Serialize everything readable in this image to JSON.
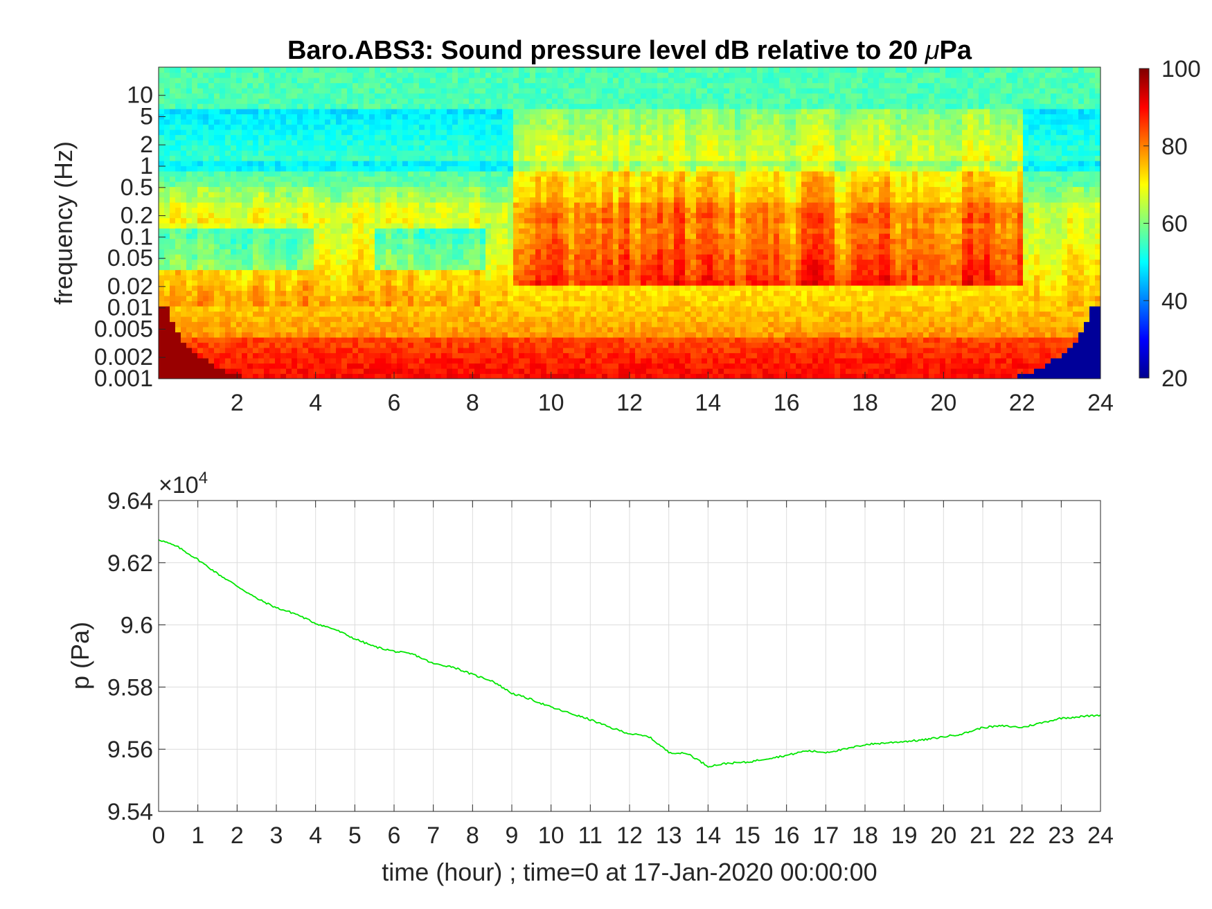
{
  "colors": {
    "line": "#00e600",
    "grid": "#dcdcdc",
    "axis": "#262626"
  },
  "chart_data": [
    {
      "type": "heatmap",
      "title": "Baro.ABS3: Sound pressure level dB relative to 20 ",
      "title_mu": "μ",
      "title_tail": "Pa",
      "ylabel": "frequency (Hz)",
      "xlabel": "",
      "xlim": [
        0,
        24
      ],
      "ylim": [
        0.001,
        25
      ],
      "yscale": "log",
      "x_ticks": [
        "2",
        "4",
        "6",
        "8",
        "10",
        "12",
        "14",
        "16",
        "18",
        "20",
        "22",
        "24"
      ],
      "x_tick_values": [
        2,
        4,
        6,
        8,
        10,
        12,
        14,
        16,
        18,
        20,
        22,
        24
      ],
      "y_ticks": [
        "10",
        "5",
        "2",
        "1",
        "0.5",
        "0.2",
        "0.1",
        "0.05",
        "0.02",
        "0.01",
        "0.005",
        "0.002",
        "0.001"
      ],
      "y_tick_values": [
        10,
        5,
        2,
        1,
        0.5,
        0.2,
        0.1,
        0.05,
        0.02,
        0.01,
        0.005,
        0.002,
        0.001
      ],
      "colormap": "jet",
      "clim": [
        20,
        100
      ],
      "colorbar_ticks": [
        "100",
        "80",
        "60",
        "40",
        "20"
      ],
      "colorbar_tick_values": [
        100,
        80,
        60,
        40,
        20
      ],
      "active_hours": [
        [
          9,
          22
        ]
      ],
      "quiet_band_gaps": [
        [
          0,
          4
        ],
        [
          5.5,
          8.3
        ]
      ]
    },
    {
      "type": "line",
      "title": "",
      "ylabel": "p (Pa)",
      "xlabel": "time (hour) ; time=0 at 17-Jan-2020 00:00:00",
      "y_exponent_prefix": "×10",
      "y_exponent": "4",
      "xlim": [
        0,
        24
      ],
      "ylim": [
        95400,
        96400
      ],
      "x_ticks": [
        "0",
        "1",
        "2",
        "3",
        "4",
        "5",
        "6",
        "7",
        "8",
        "9",
        "10",
        "11",
        "12",
        "13",
        "14",
        "15",
        "16",
        "17",
        "18",
        "19",
        "20",
        "21",
        "22",
        "23",
        "24"
      ],
      "y_ticks": [
        "9.64",
        "9.62",
        "9.6",
        "9.58",
        "9.56",
        "9.54"
      ],
      "y_tick_values": [
        96400,
        96200,
        96000,
        95800,
        95600,
        95400
      ],
      "grid": true,
      "series": [
        {
          "x": [
            0,
            0.5,
            1,
            1.5,
            2,
            2.5,
            3,
            3.5,
            4,
            4.5,
            5,
            5.5,
            6,
            6.5,
            7,
            7.5,
            8,
            8.5,
            9,
            9.5,
            10,
            10.5,
            11,
            11.5,
            12,
            12.5,
            13,
            13.5,
            14,
            14.5,
            15,
            15.5,
            16,
            16.5,
            17,
            17.5,
            18,
            18.5,
            19,
            19.5,
            20,
            20.5,
            21,
            21.5,
            22,
            22.5,
            23,
            23.5,
            24
          ],
          "y": [
            96275,
            96250,
            96210,
            96165,
            96125,
            96085,
            96055,
            96035,
            96005,
            95985,
            95955,
            95930,
            95915,
            95905,
            95875,
            95865,
            95840,
            95820,
            95780,
            95760,
            95735,
            95715,
            95695,
            95670,
            95650,
            95640,
            95590,
            95585,
            95545,
            95555,
            95558,
            95570,
            95580,
            95595,
            95590,
            95600,
            95615,
            95620,
            95625,
            95630,
            95640,
            95650,
            95670,
            95675,
            95670,
            95685,
            95700,
            95705,
            95710
          ]
        }
      ]
    }
  ]
}
